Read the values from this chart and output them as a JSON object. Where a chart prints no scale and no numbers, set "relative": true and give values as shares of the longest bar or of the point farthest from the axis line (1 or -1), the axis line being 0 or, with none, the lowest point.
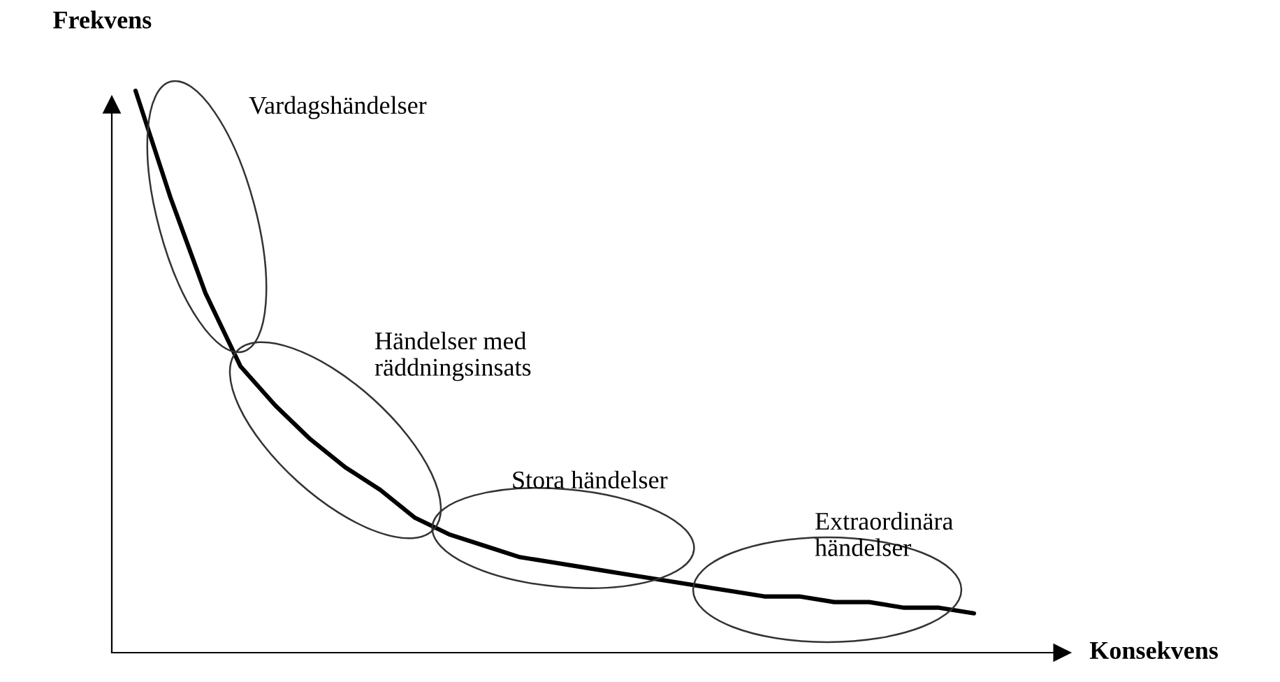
{
  "chart_data": {
    "type": "line",
    "relative": true,
    "xlabel": "Konsekvens",
    "ylabel": "Frekvens",
    "color": "#000000",
    "marker": "none",
    "line_style": "solid",
    "grid": false,
    "categories": [
      null,
      null,
      null,
      null,
      null,
      null,
      null,
      null,
      null,
      null,
      null,
      null,
      null,
      null,
      null,
      null,
      null,
      null,
      null,
      null,
      null,
      null,
      null,
      null,
      null
    ],
    "values": [
      1.0,
      0.81,
      0.64,
      0.51,
      0.44,
      0.38,
      0.33,
      0.29,
      0.24,
      0.21,
      0.19,
      0.17,
      0.16,
      0.15,
      0.14,
      0.13,
      0.12,
      0.11,
      0.1,
      0.1,
      0.09,
      0.09,
      0.08,
      0.08,
      0.07
    ],
    "annotations": [
      "Vardagshändelser",
      "Händelser med\nräddningsinsats",
      "Stora händelser",
      "Extraordinära\nhändelser"
    ]
  }
}
